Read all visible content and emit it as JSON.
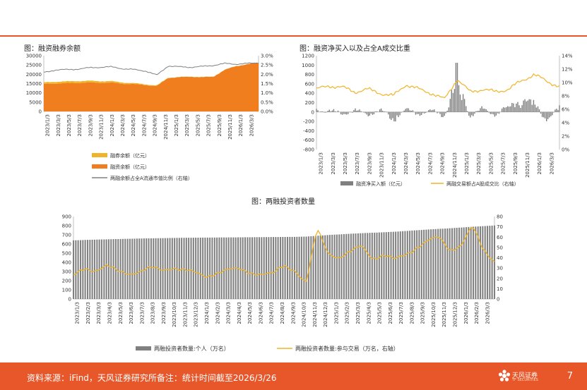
{
  "chart_data": [
    {
      "type": "area",
      "title": "图：融资融券余额",
      "x_ticks": [
        "2023/1/3",
        "2023/3/3",
        "2023/5/3",
        "2023/7/3",
        "2023/9/3",
        "2023/11/3",
        "2024/1/3",
        "2024/3/3",
        "2024/5/3",
        "2024/7/3",
        "2024/9/3",
        "2024/11/3",
        "2025/1/3",
        "2025/3/3",
        "2025/5/3",
        "2025/7/3",
        "2025/9/3",
        "2025/11/3",
        "2026/1/3",
        "2026/3/3"
      ],
      "ylim_left": [
        0,
        30000
      ],
      "y_ticks_left": [
        "0",
        "5000",
        "10000",
        "15000",
        "20000",
        "25000",
        "30000"
      ],
      "ylim_right": [
        0,
        3.0
      ],
      "y_ticks_right": [
        "0.0%",
        "0.5%",
        "1.0%",
        "1.5%",
        "2.0%",
        "2.5%",
        "3.0%"
      ],
      "series": [
        {
          "name": "融券余额（亿元）",
          "color": "#f0b429",
          "axis": "left",
          "values": [
            900,
            950,
            950,
            950,
            900,
            850,
            800,
            650,
            500,
            400,
            350,
            100,
            100,
            100,
            100,
            100,
            100,
            100,
            100,
            100
          ]
        },
        {
          "name": "融资余额（亿元）",
          "color": "#f07d1e",
          "axis": "left",
          "values": [
            14700,
            15000,
            15200,
            15400,
            15600,
            15400,
            15500,
            14900,
            14700,
            14200,
            13600,
            18100,
            18400,
            18700,
            18400,
            18700,
            22300,
            24400,
            25300,
            26300
          ]
        },
        {
          "name": "两融余额占全A流通市值比例（右轴）",
          "color": "#808080",
          "axis": "right",
          "values": [
            2.1,
            2.23,
            2.25,
            2.28,
            2.35,
            2.38,
            2.4,
            2.3,
            2.25,
            2.18,
            1.95,
            2.45,
            2.4,
            2.38,
            2.42,
            2.48,
            2.58,
            2.55,
            2.58,
            2.62
          ]
        }
      ]
    },
    {
      "type": "bar",
      "title": "图：融资净买入以及占全A成交比重",
      "x_ticks": [
        "2023/1/3",
        "2023/3/3",
        "2023/5/3",
        "2023/7/3",
        "2023/9/3",
        "2023/11/3",
        "2024/1/3",
        "2024/3/3",
        "2024/5/3",
        "2024/7/3",
        "2024/9/3",
        "2024/11/3",
        "2025/1/3",
        "2025/3/3",
        "2025/5/3",
        "2025/7/3",
        "2025/9/3",
        "2025/11/3",
        "2026/1/3",
        "2026/3/3"
      ],
      "ylim_left": [
        -800,
        1200
      ],
      "y_ticks_left": [
        "-800",
        "-600",
        "-400",
        "-200",
        "0",
        "200",
        "400",
        "600",
        "800",
        "1000",
        "1200"
      ],
      "ylim_right": [
        0,
        14
      ],
      "y_ticks_right": [
        "0%",
        "2%",
        "4%",
        "6%",
        "8%",
        "10%",
        "12%",
        "14%"
      ],
      "series": [
        {
          "name": "融资净买入额（亿元）",
          "color": "#808080",
          "axis": "left",
          "values": [
            60,
            40,
            -60,
            50,
            -80,
            60,
            -250,
            80,
            -60,
            40,
            -120,
            1050,
            -150,
            120,
            -100,
            200,
            320,
            350,
            -300,
            150
          ]
        },
        {
          "name": "两融交易额占A股成交比（右轴）",
          "color": "#f0b429",
          "axis": "right",
          "values": [
            9.0,
            9.5,
            9.3,
            8.6,
            9.0,
            8.4,
            8.0,
            9.7,
            9.0,
            8.4,
            7.5,
            10.5,
            8.6,
            9.0,
            8.6,
            9.0,
            10.2,
            11.2,
            10.2,
            9.4
          ]
        }
      ]
    },
    {
      "type": "bar",
      "title": "图：两融投资者数量",
      "x_ticks": [
        "2023/1/3",
        "2023/2/3",
        "2023/3/3",
        "2023/4/3",
        "2023/5/3",
        "2023/6/3",
        "2023/7/3",
        "2023/8/3",
        "2023/9/3",
        "2023/10/3",
        "2023/11/3",
        "2023/12/3",
        "2024/1/3",
        "2024/2/3",
        "2024/3/3",
        "2024/4/3",
        "2024/5/3",
        "2024/6/3",
        "2024/7/3",
        "2024/8/3",
        "2024/9/3",
        "2024/10/3",
        "2024/11/3",
        "2024/12/3",
        "2025/1/3",
        "2025/2/3",
        "2025/3/3",
        "2025/4/3",
        "2025/5/3",
        "2025/6/3",
        "2025/7/3",
        "2025/8/3",
        "2025/9/3",
        "2025/10/3",
        "2025/11/3",
        "2025/12/3",
        "2026/1/3",
        "2026/2/3",
        "2026/3/3"
      ],
      "ylim_left": [
        0,
        900
      ],
      "y_ticks_left": [
        "0",
        "100",
        "200",
        "300",
        "400",
        "500",
        "600",
        "700",
        "800",
        "900"
      ],
      "ylim_right": [
        0,
        80
      ],
      "y_ticks_right": [
        "0",
        "10",
        "20",
        "30",
        "40",
        "50",
        "60",
        "70",
        "80"
      ],
      "series": [
        {
          "name": "两融投资者数量:个人（万名）",
          "color": "#808080",
          "axis": "left",
          "values": [
            640,
            644,
            648,
            651,
            654,
            657,
            660,
            662,
            664,
            666,
            668,
            669,
            670,
            671,
            672,
            673,
            674,
            675,
            676,
            677,
            678,
            681,
            690,
            698,
            705,
            712,
            718,
            723,
            728,
            734,
            742,
            750,
            758,
            765,
            772,
            780,
            788,
            795,
            802
          ]
        },
        {
          "name": "两融投资者数量:参与交易（万名，右轴）",
          "color": "#f0b429",
          "axis": "right",
          "values": [
            22,
            30,
            28,
            32,
            27,
            25,
            27,
            30,
            28,
            31,
            28,
            25,
            22,
            26,
            28,
            29,
            26,
            24,
            24,
            33,
            28,
            15,
            68,
            45,
            40,
            45,
            52,
            40,
            42,
            38,
            44,
            50,
            56,
            60,
            48,
            52,
            70,
            48,
            37
          ]
        }
      ]
    }
  ],
  "footer": {
    "source": "资料来源：iFind，天风证券研究所备注：统计时间截至2026/3/26",
    "brand_name": "天风证券",
    "brand_sub": "TF SECURITIES",
    "page_number": "7"
  }
}
